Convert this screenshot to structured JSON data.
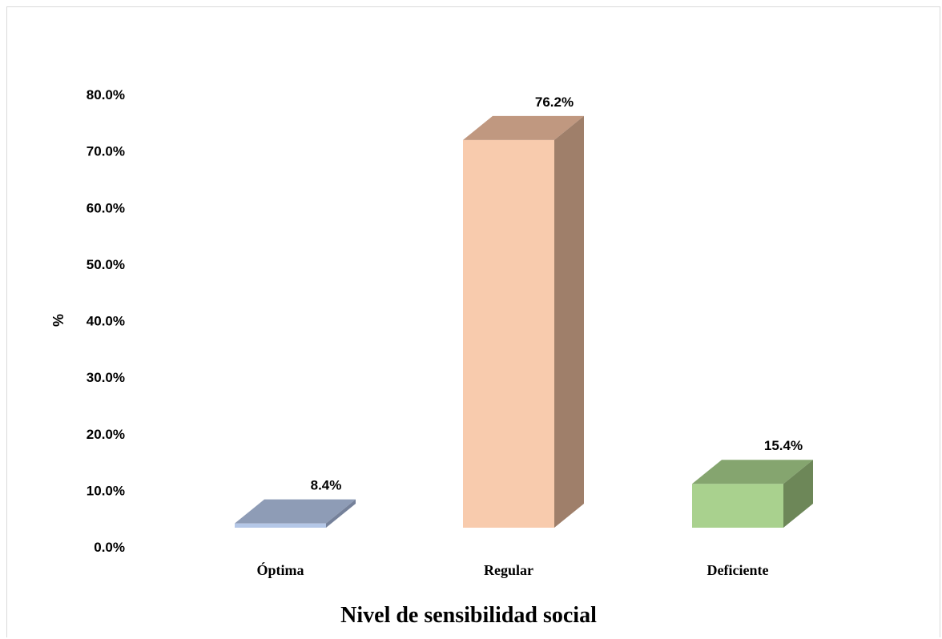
{
  "chart_data": {
    "type": "bar",
    "style": "3d-column",
    "categories": [
      "Óptima",
      "Regular",
      "Deficiente"
    ],
    "values": [
      8.4,
      76.2,
      15.4
    ],
    "data_labels": [
      "8.4%",
      "76.2%",
      "15.4%"
    ],
    "xlabel": "Nivel de sensibilidad social",
    "ylabel": "%",
    "ylim": [
      0,
      80
    ],
    "yticks": [
      0,
      10,
      20,
      30,
      40,
      50,
      60,
      70,
      80
    ],
    "ytick_labels": [
      "0.0%",
      "10.0%",
      "20.0%",
      "30.0%",
      "40.0%",
      "50.0%",
      "60.0%",
      "70.0%",
      "80.0%"
    ],
    "grid": false,
    "legend": "none",
    "colors": {
      "front": [
        "#b4c7e7",
        "#f8cbad",
        "#a9d18e"
      ],
      "top": [
        "#8e9cb6",
        "#c09880",
        "#85a56f"
      ],
      "side": [
        "#75819a",
        "#9f7f6a",
        "#6d8758"
      ]
    }
  }
}
